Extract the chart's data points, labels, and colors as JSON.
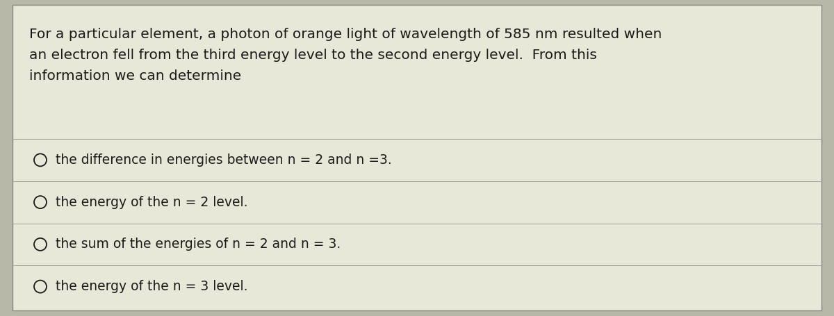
{
  "outer_bg_color": "#b8b8a8",
  "inner_bg_color": "#e8e8d8",
  "border_color": "#888880",
  "text_color": "#1a1a1a",
  "divider_color": "#a0a098",
  "question_text_line1": "For a particular element, a photon of orange light of wavelength of 585 nm resulted when",
  "question_text_line2": "an electron fell from the third energy level to the second energy level.  From this",
  "question_text_line3": "information we can determine",
  "options": [
    "the difference in energies between n = 2 and n =3.",
    "the energy of the n = 2 level.",
    "the sum of the energies of n = 2 and n = 3.",
    "the energy of the n = 3 level."
  ],
  "question_fontsize": 14.5,
  "option_fontsize": 13.5,
  "figsize": [
    12.0,
    4.56
  ],
  "dpi": 100
}
